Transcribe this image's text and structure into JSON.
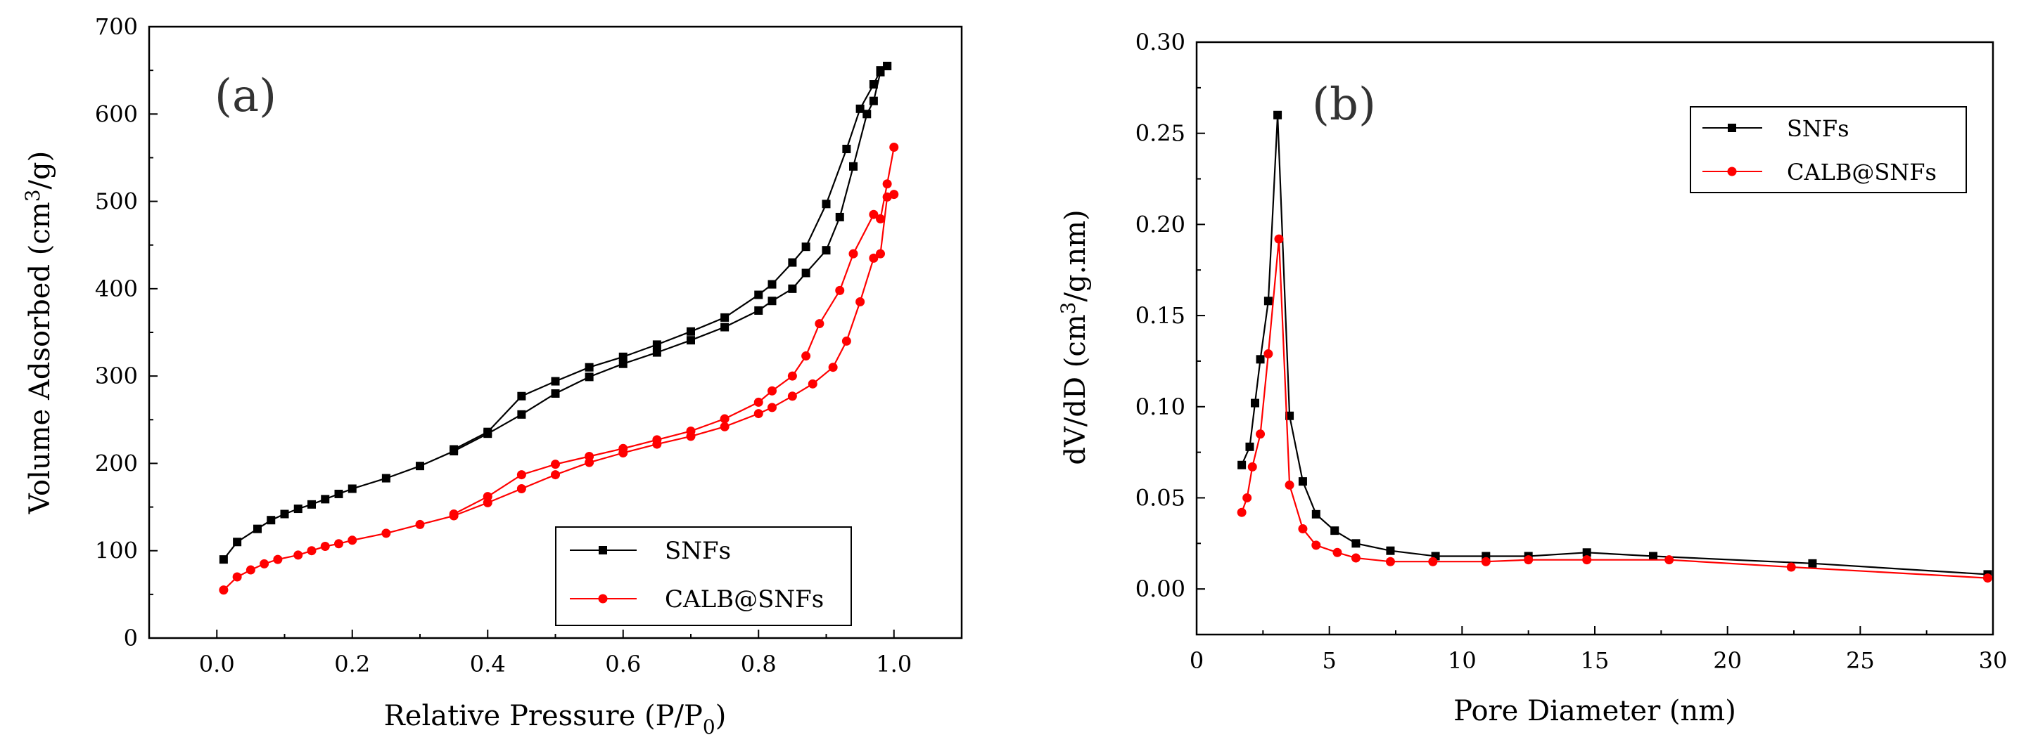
{
  "chart_data": [
    {
      "type": "line",
      "panel_label": "(a)",
      "title": "",
      "xlabel_main": "Relative Pressure (P/P",
      "xlabel_sub": "0",
      "xlabel_end": ")",
      "ylabel_main": "Volume Adsorbed (cm",
      "ylabel_sup": "3",
      "ylabel_end": "/g)",
      "xlim": [
        -0.1,
        1.1
      ],
      "ylim": [
        0,
        700
      ],
      "x_ticks": [
        0.0,
        0.2,
        0.4,
        0.6,
        0.8,
        1.0
      ],
      "x_tick_labels": [
        "0.0",
        "0.2",
        "0.4",
        "0.6",
        "0.8",
        "1.0"
      ],
      "y_ticks": [
        0,
        100,
        200,
        300,
        400,
        500,
        600,
        700
      ],
      "y_tick_labels": [
        "0",
        "100",
        "200",
        "300",
        "400",
        "500",
        "600",
        "700"
      ],
      "grid": false,
      "legend_position": "bottom-right",
      "series": [
        {
          "name": "SNFs",
          "color": "#000000",
          "marker": "square",
          "adsorption": [
            [
              0.01,
              90
            ],
            [
              0.03,
              110
            ],
            [
              0.06,
              125
            ],
            [
              0.08,
              135
            ],
            [
              0.1,
              142
            ],
            [
              0.12,
              148
            ],
            [
              0.14,
              153
            ],
            [
              0.16,
              159
            ],
            [
              0.18,
              165
            ],
            [
              0.2,
              171
            ],
            [
              0.25,
              183
            ],
            [
              0.3,
              197
            ],
            [
              0.35,
              214
            ],
            [
              0.4,
              234
            ],
            [
              0.45,
              256
            ],
            [
              0.5,
              280
            ],
            [
              0.55,
              299
            ],
            [
              0.6,
              314
            ],
            [
              0.65,
              327
            ],
            [
              0.7,
              341
            ],
            [
              0.75,
              356
            ],
            [
              0.8,
              375
            ],
            [
              0.82,
              386
            ],
            [
              0.85,
              400
            ],
            [
              0.87,
              418
            ],
            [
              0.9,
              444
            ],
            [
              0.92,
              482
            ],
            [
              0.94,
              540
            ],
            [
              0.96,
              600
            ],
            [
              0.97,
              615
            ],
            [
              0.98,
              648
            ],
            [
              0.99,
              655
            ]
          ],
          "desorption": [
            [
              0.99,
              655
            ],
            [
              0.98,
              650
            ],
            [
              0.97,
              634
            ],
            [
              0.95,
              606
            ],
            [
              0.93,
              560
            ],
            [
              0.9,
              497
            ],
            [
              0.87,
              448
            ],
            [
              0.85,
              430
            ],
            [
              0.82,
              405
            ],
            [
              0.8,
              393
            ],
            [
              0.75,
              367
            ],
            [
              0.7,
              351
            ],
            [
              0.65,
              336
            ],
            [
              0.6,
              322
            ],
            [
              0.55,
              310
            ],
            [
              0.5,
              294
            ],
            [
              0.45,
              277
            ],
            [
              0.4,
              236
            ],
            [
              0.35,
              216
            ]
          ]
        },
        {
          "name": "CALB@SNFs",
          "color": "#ff0000",
          "marker": "circle",
          "adsorption": [
            [
              0.01,
              55
            ],
            [
              0.03,
              70
            ],
            [
              0.05,
              78
            ],
            [
              0.07,
              85
            ],
            [
              0.09,
              90
            ],
            [
              0.12,
              95
            ],
            [
              0.14,
              100
            ],
            [
              0.16,
              105
            ],
            [
              0.18,
              108
            ],
            [
              0.2,
              112
            ],
            [
              0.25,
              120
            ],
            [
              0.3,
              130
            ],
            [
              0.35,
              140
            ],
            [
              0.4,
              155
            ],
            [
              0.45,
              171
            ],
            [
              0.5,
              187
            ],
            [
              0.55,
              201
            ],
            [
              0.6,
              212
            ],
            [
              0.65,
              222
            ],
            [
              0.7,
              231
            ],
            [
              0.75,
              242
            ],
            [
              0.8,
              257
            ],
            [
              0.82,
              264
            ],
            [
              0.85,
              277
            ],
            [
              0.88,
              291
            ],
            [
              0.91,
              310
            ],
            [
              0.93,
              340
            ],
            [
              0.95,
              385
            ],
            [
              0.97,
              435
            ],
            [
              0.98,
              440
            ],
            [
              0.99,
              505
            ],
            [
              1.0,
              508
            ]
          ],
          "desorption": [
            [
              1.0,
              562
            ],
            [
              0.99,
              520
            ],
            [
              0.98,
              480
            ],
            [
              0.97,
              485
            ],
            [
              0.94,
              440
            ],
            [
              0.92,
              398
            ],
            [
              0.89,
              360
            ],
            [
              0.87,
              323
            ],
            [
              0.85,
              300
            ],
            [
              0.82,
              283
            ],
            [
              0.8,
              270
            ],
            [
              0.75,
              251
            ],
            [
              0.7,
              237
            ],
            [
              0.65,
              227
            ],
            [
              0.6,
              217
            ],
            [
              0.55,
              208
            ],
            [
              0.5,
              199
            ],
            [
              0.45,
              187
            ],
            [
              0.4,
              162
            ],
            [
              0.35,
              142
            ]
          ]
        }
      ]
    },
    {
      "type": "line",
      "panel_label": "(b)",
      "title": "",
      "xlabel": "Pore Diameter (nm)",
      "ylabel_main": "dV/dD (cm",
      "ylabel_sup": "3",
      "ylabel_end": "/g.nm)",
      "xlim": [
        0,
        30
      ],
      "ylim": [
        -0.025,
        0.3
      ],
      "x_ticks": [
        0,
        5,
        10,
        15,
        20,
        25,
        30
      ],
      "x_tick_labels": [
        "0",
        "5",
        "10",
        "15",
        "20",
        "25",
        "30"
      ],
      "y_ticks": [
        0.0,
        0.05,
        0.1,
        0.15,
        0.2,
        0.25,
        0.3
      ],
      "y_tick_labels": [
        "0.00",
        "0.05",
        "0.10",
        "0.15",
        "0.20",
        "0.25",
        "0.30"
      ],
      "grid": false,
      "legend_position": "top-right",
      "series": [
        {
          "name": "SNFs",
          "color": "#000000",
          "marker": "square",
          "points": [
            [
              1.7,
              0.068
            ],
            [
              2.0,
              0.078
            ],
            [
              2.2,
              0.102
            ],
            [
              2.4,
              0.126
            ],
            [
              2.7,
              0.158
            ],
            [
              3.05,
              0.26
            ],
            [
              3.5,
              0.095
            ],
            [
              4.0,
              0.059
            ],
            [
              4.5,
              0.041
            ],
            [
              5.2,
              0.032
            ],
            [
              6.0,
              0.025
            ],
            [
              7.3,
              0.021
            ],
            [
              9.0,
              0.018
            ],
            [
              10.9,
              0.018
            ],
            [
              12.5,
              0.018
            ],
            [
              14.7,
              0.02
            ],
            [
              17.2,
              0.018
            ],
            [
              23.2,
              0.014
            ],
            [
              29.8,
              0.008
            ]
          ]
        },
        {
          "name": "CALB@SNFs",
          "color": "#ff0000",
          "marker": "circle",
          "points": [
            [
              1.7,
              0.042
            ],
            [
              1.9,
              0.05
            ],
            [
              2.1,
              0.067
            ],
            [
              2.4,
              0.085
            ],
            [
              2.7,
              0.129
            ],
            [
              3.1,
              0.192
            ],
            [
              3.5,
              0.057
            ],
            [
              4.0,
              0.033
            ],
            [
              4.5,
              0.024
            ],
            [
              5.3,
              0.02
            ],
            [
              6.0,
              0.017
            ],
            [
              7.3,
              0.015
            ],
            [
              8.9,
              0.015
            ],
            [
              10.9,
              0.015
            ],
            [
              12.5,
              0.016
            ],
            [
              14.7,
              0.016
            ],
            [
              17.8,
              0.016
            ],
            [
              22.4,
              0.012
            ],
            [
              29.8,
              0.006
            ]
          ]
        }
      ]
    }
  ]
}
